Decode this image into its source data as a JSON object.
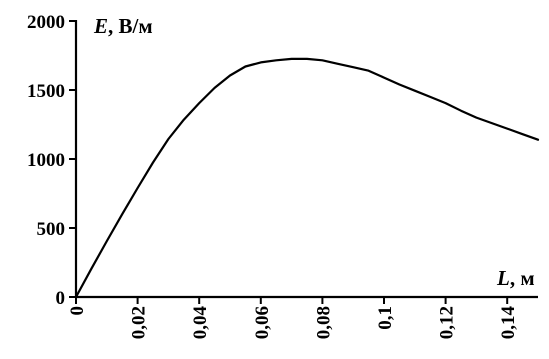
{
  "chart_data": {
    "type": "line",
    "ylabel_symbol": "E",
    "ylabel_unit": ", В/м",
    "xlabel_symbol": "L",
    "xlabel_unit": ", м",
    "xlim": [
      0,
      0.15
    ],
    "ylim": [
      0,
      2000
    ],
    "x_ticks": [
      0,
      0.02,
      0.04,
      0.06,
      0.08,
      0.1,
      0.12,
      0.14
    ],
    "x_tick_labels": [
      "0",
      "0,02",
      "0,04",
      "0,06",
      "0,08",
      "0,1",
      "0,12",
      "0,14"
    ],
    "y_ticks": [
      0,
      500,
      1000,
      1500,
      2000
    ],
    "y_tick_labels": [
      "0",
      "500",
      "1000",
      "1500",
      "2000"
    ],
    "grid": false,
    "series": [
      {
        "color": "#000000",
        "x": [
          0,
          0.005,
          0.01,
          0.015,
          0.02,
          0.025,
          0.03,
          0.035,
          0.04,
          0.045,
          0.05,
          0.055,
          0.06,
          0.065,
          0.07,
          0.075,
          0.08,
          0.085,
          0.09,
          0.095,
          0.1,
          0.105,
          0.11,
          0.115,
          0.12,
          0.125,
          0.13,
          0.135,
          0.14,
          0.145,
          0.15
        ],
        "y": [
          0,
          205,
          405,
          600,
          790,
          975,
          1145,
          1285,
          1405,
          1515,
          1605,
          1670,
          1700,
          1715,
          1725,
          1725,
          1715,
          1690,
          1665,
          1640,
          1590,
          1540,
          1495,
          1450,
          1405,
          1350,
          1300,
          1260,
          1220,
          1180,
          1140
        ]
      }
    ]
  }
}
